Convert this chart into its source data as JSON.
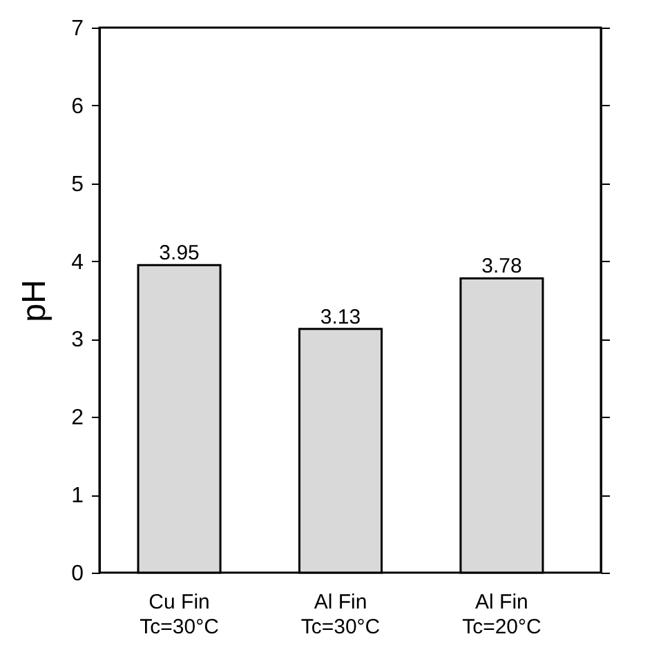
{
  "chart_data": {
    "type": "bar",
    "ylabel": "pH",
    "categories": [
      "Cu Fin\nTc=30°C",
      "Al Fin\nTc=30°C",
      "Al Fin\nTc=20°C"
    ],
    "values": [
      3.95,
      3.13,
      3.78
    ],
    "color": "#d9d9d9",
    "ylim": [
      0,
      7
    ],
    "yticks": [
      0,
      1,
      2,
      3,
      4,
      5,
      6,
      7
    ],
    "data_labels": true,
    "grid": false
  }
}
